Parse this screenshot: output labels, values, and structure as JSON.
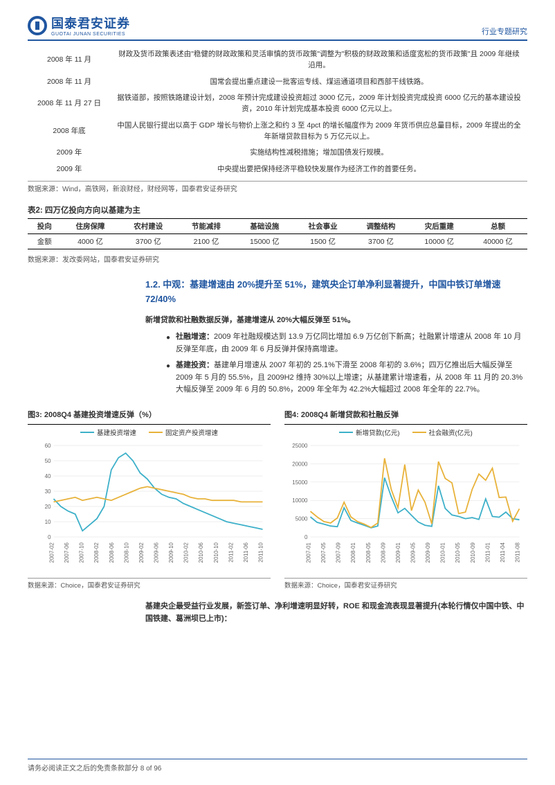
{
  "header": {
    "logo_cn": "国泰君安证券",
    "logo_en": "GUOTAI JUNAN SECURITIES",
    "right_label": "行业专题研究"
  },
  "events": [
    {
      "date": "2008 年 11 月",
      "desc": "财政及货币政策表述由\"稳健的财政政策和灵活审慎的货币政策\"调整为\"积极的财政政策和适度宽松的货币政策\"且 2009 年继续沿用。"
    },
    {
      "date": "2008 年 11 月",
      "desc": "国常会提出重点建设一批客运专线、煤运通道项目和西部干线铁路。"
    },
    {
      "date": "2008 年 11 月 27 日",
      "desc": "据铁道部，按照铁路建设计划，2008 年预计完成建设投资超过 3000 亿元，2009 年计划投资完成投资 6000 亿元的基本建设投资，2010 年计划完成基本投资 6000 亿元以上。"
    },
    {
      "date": "2008 年底",
      "desc": "中国人民银行提出以高于 GDP 增长与物价上涨之和约 3 至 4pct 的增长幅度作为 2009 年货币供应总量目标，2009 年提出的全年新增贷款目标为 5 万亿元以上。"
    },
    {
      "date": "2009 年",
      "desc": "实施结构性减税措施；增加国债发行规模。"
    },
    {
      "date": "2009 年",
      "desc": "中央提出要把保持经济平稳较快发展作为经济工作的首要任务。"
    }
  ],
  "events_source": "数据来源：Wind，高铁网，新浪财经，财经网等，国泰君安证券研究",
  "table2": {
    "title": "表2:  四万亿投向方向以基建为主",
    "columns": [
      "投向",
      "住房保障",
      "农村建设",
      "节能减排",
      "基础设施",
      "社会事业",
      "调整结构",
      "灾后重建",
      "总额"
    ],
    "row_label": "金额",
    "values": [
      "4000 亿",
      "3700 亿",
      "2100 亿",
      "15000 亿",
      "1500 亿",
      "3700 亿",
      "10000 亿",
      "40000 亿"
    ],
    "source": "数据来源：发改委网站，国泰君安证券研究"
  },
  "heading12": "1.2.  中观：基建增速由 20%提升至 51%，建筑央企订单净利显著提升，中国中铁订单增速 72/40%",
  "lead_sentence": "新增贷款和社融数据反弹，基建增速从 20%大幅反弹至 51%。",
  "bullets": [
    {
      "label": "社融增速：",
      "text": "2009 年社融规模达到 13.9 万亿同比增加 6.9 万亿创下新高；社融累计增速从 2008 年 10 月反弹至年底，由 2009 年 6 月反弹并保持高增速。"
    },
    {
      "label": "基建投资：",
      "text": "基建单月增速从 2007 年初的 25.1%下滑至 2008 年初的 3.6%；四万亿推出后大幅反弹至 2009 年 5 月的 55.5%，且 2009H2 维持 30%以上增速；从基建累计增速看，从 2008 年 11 月的 20.3%大幅反弹至 2009 年 6 月的 50.8%，2009 年全年为 42.2%大幅超过 2008 年全年的 22.7%。"
    }
  ],
  "chart3": {
    "title": "图3:  2008Q4 基建投资增速反弹（%）",
    "type": "line",
    "legend": [
      "基建投资增速",
      "固定资产投资增速"
    ],
    "colors": [
      "#3db0c9",
      "#e8b23a"
    ],
    "x_labels": [
      "2007-02",
      "2007-06",
      "2007-10",
      "2008-02",
      "2008-06",
      "2008-10",
      "2009-02",
      "2009-06",
      "2009-10",
      "2010-02",
      "2010-06",
      "2010-10",
      "2011-02",
      "2011-06",
      "2011-10"
    ],
    "ylim": [
      0,
      60
    ],
    "ytick_step": 10,
    "series1": [
      25,
      20,
      17,
      15,
      4,
      8,
      12,
      20,
      44,
      52,
      55,
      50,
      42,
      38,
      32,
      28,
      26,
      25,
      22,
      20,
      18,
      16,
      14,
      12,
      10,
      9,
      8,
      7,
      6,
      5
    ],
    "series2": [
      23,
      24,
      25,
      26,
      24,
      25,
      26,
      25,
      24,
      26,
      28,
      30,
      32,
      33,
      32,
      31,
      30,
      29,
      28,
      26,
      25,
      25,
      24,
      24,
      24,
      24,
      23,
      23,
      23,
      23
    ],
    "source": "数据来源：Choice，国泰君安证券研究",
    "background_color": "#ffffff",
    "grid_color": "#e0e0e0"
  },
  "chart4": {
    "title": "图4:  2008Q4 新增贷款和社融反弹",
    "type": "line",
    "legend": [
      "新增贷款(亿元)",
      "社会融资(亿元)"
    ],
    "colors": [
      "#3db0c9",
      "#e8b23a"
    ],
    "x_labels": [
      "2007-01",
      "2007-05",
      "2007-09",
      "2008-01",
      "2008-05",
      "2008-09",
      "2009-01",
      "2009-05",
      "2009-09",
      "2010-01",
      "2010-05",
      "2010-09",
      "2011-01",
      "2011-04",
      "2011-08"
    ],
    "ylim": [
      0,
      25000
    ],
    "ytick_step": 5000,
    "series1": [
      5500,
      4000,
      3500,
      3000,
      2800,
      8000,
      4500,
      3800,
      3200,
      2500,
      3000,
      16200,
      11000,
      6600,
      7800,
      5900,
      4100,
      3200,
      2900,
      14000,
      7800,
      6000,
      5600,
      5000,
      5300,
      4800,
      10400,
      5600,
      5400,
      6800,
      5000,
      4700
    ],
    "series2": [
      7000,
      5500,
      4200,
      3800,
      5200,
      9500,
      5500,
      4200,
      3500,
      2600,
      3800,
      21500,
      13000,
      8000,
      19800,
      7200,
      12800,
      9500,
      3600,
      20600,
      16000,
      14800,
      6400,
      6800,
      13000,
      17200,
      15500,
      18800,
      10800,
      10900,
      4300,
      7700
    ],
    "source": "数据来源：Choice，国泰君安证券研究",
    "background_color": "#ffffff",
    "grid_color": "#e0e0e0"
  },
  "bottom_text": "基建央企最受益行业发展，新签订单、净利增速明显好转，ROE 和现金流表现显著提升(本轮行情仅中国中铁、中国铁建、葛洲坝已上市)：",
  "footer": "请务必阅读正文之后的免责条款部分 8 of 96"
}
